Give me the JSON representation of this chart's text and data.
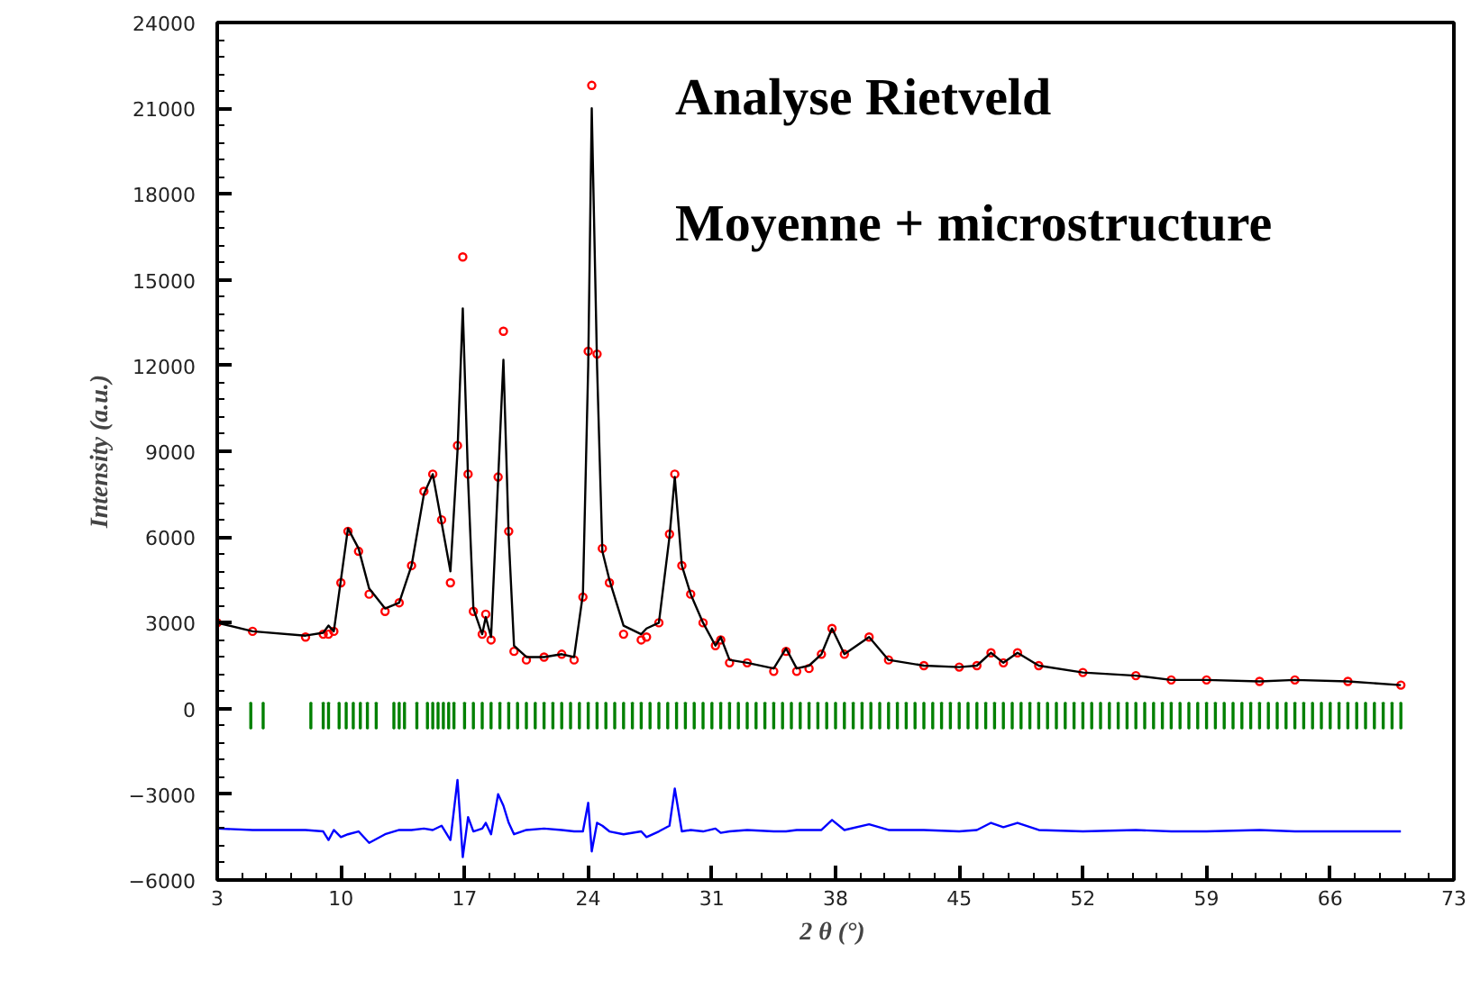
{
  "chart_data": {
    "type": "line",
    "xlabel": "2 θ  (°)",
    "ylabel": "Intensity (a.u.)",
    "annotations": [
      "Analyse Rietveld",
      "Moyenne + microstructure"
    ],
    "xlim": [
      3,
      73
    ],
    "xticks": [
      3,
      10,
      17,
      24,
      31,
      38,
      45,
      52,
      59,
      66,
      73
    ],
    "ylim": [
      -6000,
      24000
    ],
    "yticks": [
      -6000,
      -3000,
      0,
      3000,
      6000,
      9000,
      12000,
      15000,
      18000,
      21000,
      24000
    ],
    "grid": false,
    "x": [
      3,
      5,
      8,
      9,
      9.3,
      9.6,
      10,
      10.4,
      11,
      11.6,
      12.5,
      13.3,
      14,
      14.7,
      15.2,
      15.7,
      16.2,
      16.6,
      16.9,
      17.2,
      17.5,
      18,
      18.2,
      18.5,
      18.9,
      19.2,
      19.5,
      19.8,
      20.5,
      21.5,
      22.5,
      23.2,
      23.7,
      24,
      24.2,
      24.5,
      24.8,
      25.2,
      26,
      27,
      27.3,
      28,
      28.6,
      28.9,
      29.3,
      29.8,
      30.5,
      31.2,
      31.5,
      32,
      33,
      34.5,
      35.2,
      35.8,
      36.5,
      37.2,
      37.8,
      38.5,
      39.9,
      41,
      43,
      45,
      46,
      46.8,
      47.5,
      48.3,
      49.5,
      52,
      55,
      57,
      59,
      62,
      64,
      67,
      70
    ],
    "series": [
      {
        "type": "scatter",
        "marker": "circle",
        "color": "#ff0000",
        "values": [
          3000,
          2700,
          2500,
          2600,
          2600,
          2700,
          4400,
          6200,
          5500,
          4000,
          3400,
          3700,
          5000,
          7600,
          8200,
          6600,
          4400,
          9200,
          15800,
          8200,
          3400,
          2600,
          3300,
          2400,
          8100,
          13200,
          6200,
          2000,
          1700,
          1800,
          1900,
          1700,
          3900,
          12500,
          21800,
          12400,
          5600,
          4400,
          2600,
          2400,
          2500,
          3000,
          6100,
          8200,
          5000,
          4000,
          3000,
          2200,
          2400,
          1600,
          1600,
          1300,
          2000,
          1300,
          1400,
          1900,
          2800,
          1900,
          2500,
          1700,
          1500,
          1450,
          1500,
          1950,
          1600,
          1950,
          1500,
          1260,
          1150,
          1000,
          1000,
          950,
          1000,
          950,
          820
        ]
      },
      {
        "line_style": "solid",
        "color": "#000000",
        "values": [
          3000,
          2700,
          2550,
          2650,
          2900,
          2700,
          4500,
          6300,
          5600,
          4200,
          3500,
          3700,
          5000,
          7500,
          8200,
          6500,
          4800,
          9000,
          14000,
          8000,
          3500,
          2600,
          3200,
          2500,
          8000,
          12200,
          6000,
          2200,
          1800,
          1800,
          1900,
          1800,
          4000,
          12000,
          21000,
          12000,
          5500,
          4500,
          2900,
          2600,
          2800,
          3000,
          6000,
          8100,
          5000,
          4000,
          3000,
          2200,
          2500,
          1700,
          1600,
          1400,
          2100,
          1400,
          1500,
          1900,
          2800,
          1900,
          2500,
          1700,
          1500,
          1450,
          1500,
          1950,
          1600,
          1950,
          1500,
          1260,
          1150,
          1000,
          1000,
          950,
          1000,
          950,
          820
        ]
      },
      {
        "line_style": "solid",
        "color": "#0000ff",
        "values": [
          -4200,
          -4250,
          -4250,
          -4300,
          -4600,
          -4250,
          -4500,
          -4400,
          -4300,
          -4700,
          -4400,
          -4250,
          -4250,
          -4200,
          -4250,
          -4100,
          -4600,
          -2500,
          -5200,
          -3800,
          -4300,
          -4200,
          -4000,
          -4400,
          -3000,
          -3400,
          -4000,
          -4400,
          -4250,
          -4200,
          -4250,
          -4300,
          -4300,
          -3300,
          -5000,
          -4000,
          -4100,
          -4300,
          -4400,
          -4300,
          -4500,
          -4300,
          -4100,
          -2800,
          -4300,
          -4250,
          -4300,
          -4200,
          -4350,
          -4300,
          -4250,
          -4300,
          -4300,
          -4250,
          -4250,
          -4250,
          -3900,
          -4250,
          -4050,
          -4250,
          -4250,
          -4300,
          -4250,
          -4000,
          -4150,
          -4000,
          -4250,
          -4300,
          -4250,
          -4300,
          -4300,
          -4250,
          -4300,
          -4300,
          -4300
        ]
      },
      {
        "type": "bar",
        "color": "#008000",
        "x": [
          4.9,
          5.6,
          8.3,
          9.0,
          9.3,
          9.9,
          10.3,
          10.7,
          11.1,
          11.5,
          12.0,
          13.0,
          13.3,
          13.6,
          14.3,
          14.9,
          15.2,
          15.5,
          15.8,
          16.1,
          16.4,
          17,
          17.5,
          18,
          18.5,
          19,
          19.5,
          20,
          20.5,
          21,
          21.5,
          22,
          22.5,
          23,
          23.5,
          24,
          24.5,
          25,
          25.5,
          26,
          26.5,
          27,
          27.5,
          28,
          28.5,
          29,
          29.5,
          30,
          30.5,
          31,
          31.5,
          32,
          32.5,
          33,
          33.5,
          34,
          34.5,
          35,
          35.5,
          36,
          36.5,
          37,
          37.5,
          38,
          38.5,
          39,
          39.5,
          40,
          40.5,
          41,
          41.5,
          42,
          42.5,
          43,
          43.5,
          44,
          44.5,
          45,
          45.5,
          46,
          46.5,
          47,
          47.5,
          48,
          48.5,
          49,
          49.5,
          50,
          50.5,
          51,
          51.5,
          52,
          52.5,
          53,
          53.5,
          54,
          54.5,
          55,
          55.5,
          56,
          56.5,
          57,
          57.5,
          58,
          58.5,
          59,
          59.5,
          60,
          60.5,
          61,
          61.5,
          62,
          62.5,
          63,
          63.5,
          64,
          64.5,
          65,
          65.5,
          66,
          66.5,
          67,
          67.5,
          68,
          68.5,
          69,
          69.5,
          70
        ],
        "values": [
          900,
          900,
          900,
          900,
          900,
          900,
          900,
          900,
          900,
          900,
          900,
          900,
          900,
          900,
          900,
          900,
          900,
          900,
          900,
          900,
          900,
          900,
          900,
          900,
          900,
          900,
          900,
          900,
          900,
          900,
          900,
          900,
          900,
          900,
          900,
          900,
          900,
          900,
          900,
          900,
          900,
          900,
          900,
          900,
          900,
          900,
          900,
          900,
          900,
          900,
          900,
          900,
          900,
          900,
          900,
          900,
          900,
          900,
          900,
          900,
          900,
          900,
          900,
          900,
          900,
          900,
          900,
          900,
          900,
          900,
          900,
          900,
          900,
          900,
          900,
          900,
          900,
          900,
          900,
          900,
          900,
          900,
          900,
          900,
          900,
          900,
          900,
          900,
          900,
          900,
          900,
          900,
          900,
          900,
          900,
          900,
          900,
          900,
          900,
          900,
          900,
          900,
          900,
          900,
          900,
          900,
          900,
          900,
          900,
          900,
          900,
          900,
          900,
          900,
          900,
          900,
          900,
          900,
          900,
          900,
          900,
          900,
          900,
          900,
          900,
          900,
          900,
          900
        ],
        "base": [
          -700,
          -700,
          -700,
          -700,
          -700,
          -700,
          -700,
          -700,
          -700,
          -700,
          -700,
          -700,
          -700,
          -700,
          -700,
          -700,
          -700,
          -700,
          -700,
          -700,
          -700,
          -700,
          -700,
          -700,
          -700,
          -700,
          -700,
          -700,
          -700,
          -700,
          -700,
          -700,
          -700,
          -700,
          -700,
          -700,
          -700,
          -700,
          -700,
          -700,
          -700,
          -700,
          -700,
          -700,
          -700,
          -700,
          -700,
          -700,
          -700,
          -700,
          -700,
          -700,
          -700,
          -700,
          -700,
          -700,
          -700,
          -700,
          -700,
          -700,
          -700,
          -700,
          -700,
          -700,
          -700,
          -700,
          -700,
          -700,
          -700,
          -700,
          -700,
          -700,
          -700,
          -700,
          -700,
          -700,
          -700,
          -700,
          -700,
          -700,
          -700,
          -700,
          -700,
          -700,
          -700,
          -700,
          -700,
          -700,
          -700,
          -700,
          -700,
          -700,
          -700,
          -700,
          -700,
          -700,
          -700,
          -700,
          -700,
          -700,
          -700,
          -700,
          -700,
          -700,
          -700,
          -700,
          -700,
          -700,
          -700,
          -700,
          -700,
          -700,
          -700,
          -700,
          -700,
          -700,
          -700,
          -700,
          -700,
          -700,
          -700,
          -700,
          -700,
          -700,
          -700,
          -700,
          -700,
          -700
        ]
      }
    ]
  }
}
